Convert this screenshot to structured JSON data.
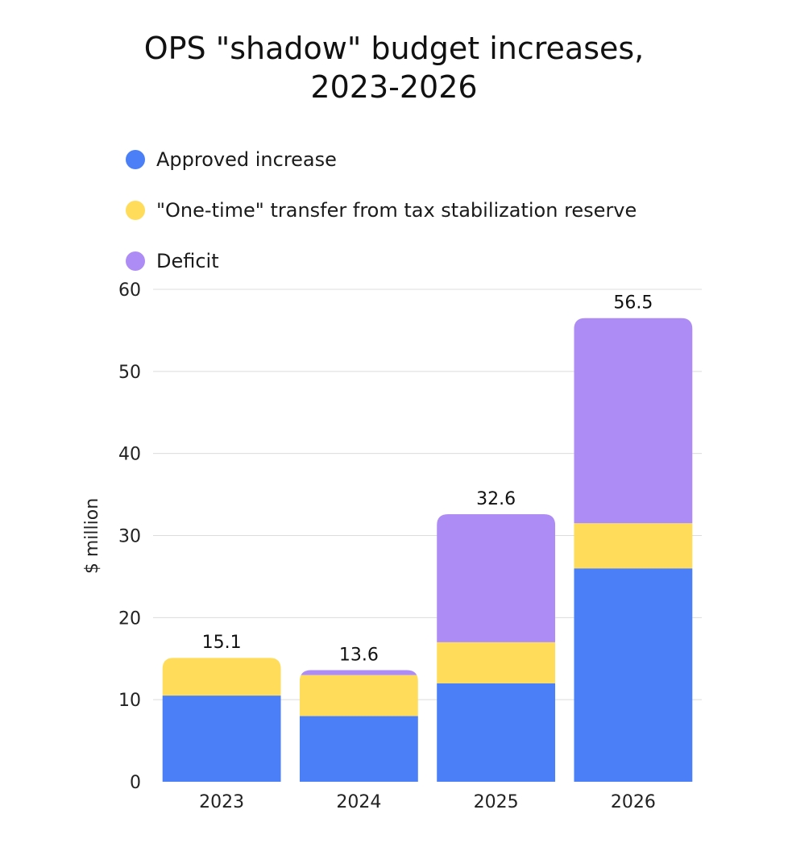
{
  "chart_data": {
    "type": "bar",
    "stacked": true,
    "title_lines": [
      "OPS \"shadow\" budget increases,",
      "2023-2026"
    ],
    "xlabel": "",
    "ylabel": "$ million",
    "ylim": [
      0,
      60
    ],
    "yticks": [
      0,
      10,
      20,
      30,
      40,
      50,
      60
    ],
    "grid": true,
    "legend_position": "top-left",
    "categories": [
      "2023",
      "2024",
      "2025",
      "2026"
    ],
    "series": [
      {
        "name": "Approved increase",
        "color": "#4a7ff7",
        "values": [
          10.5,
          8.0,
          12.0,
          26.0
        ]
      },
      {
        "name": "\"One-time\" transfer from tax stabilization reserve",
        "color": "#ffdc59",
        "values": [
          4.6,
          5.0,
          5.0,
          5.5
        ]
      },
      {
        "name": "Deficit",
        "color": "#ae8cf5",
        "values": [
          0.0,
          0.6,
          15.6,
          25.0
        ]
      }
    ],
    "totals": [
      "15.1",
      "13.6",
      "32.6",
      "56.5"
    ]
  }
}
